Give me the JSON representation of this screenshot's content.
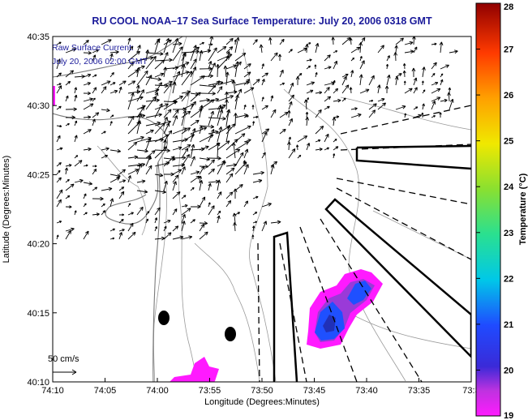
{
  "title": "RU COOL  NOAA–17  Sea Surface Temperature:  July 20, 2006 0318 GMT",
  "annotation": {
    "line1": "Raw Surface Current:",
    "line2": "July 20, 2006 02:00 GMT"
  },
  "scale_label": "50 cm/s",
  "chart_data": {
    "type": "heatmap",
    "title": "RU COOL  NOAA–17  Sea Surface Temperature:  July 20, 2006 0318 GMT",
    "xlabel": "Longitude (Degrees:Minutes)",
    "ylabel": "Latitude (Degrees:Minutes)",
    "x_ticks": [
      "74:10",
      "74:05",
      "74:00",
      "73:55",
      "73:50",
      "73:45",
      "73:40",
      "73:35",
      "73:3"
    ],
    "y_ticks": [
      "40:10",
      "40:15",
      "40:20",
      "40:25",
      "40:30",
      "40:35"
    ],
    "xlim": [
      -74.1667,
      -73.5
    ],
    "ylim": [
      40.1667,
      40.5833
    ],
    "colorbar": {
      "label": "Temperature (°C)",
      "range": [
        19,
        28
      ],
      "ticks": [
        19,
        20,
        21,
        22,
        23,
        24,
        25,
        26,
        27,
        28
      ]
    },
    "sst_patches": [
      {
        "lon": -73.73,
        "lat": 40.235,
        "temp": 20.0
      },
      {
        "lon": -73.672,
        "lat": 40.265,
        "temp": 20.3
      },
      {
        "lon": -74.16,
        "lat": 40.515,
        "temp": 19.3
      },
      {
        "lon": -73.905,
        "lat": 40.175,
        "temp": 19.1
      }
    ],
    "current_vectors_note": "Raw Surface Current: July 20, 2006 02:00 GMT",
    "vector_scale": "50 cm/s"
  },
  "colors": {
    "title": "#1a1a9a",
    "annotation": "#1a1a9a",
    "contour": "#9a9a9a",
    "coast": "#8a8a8a"
  }
}
